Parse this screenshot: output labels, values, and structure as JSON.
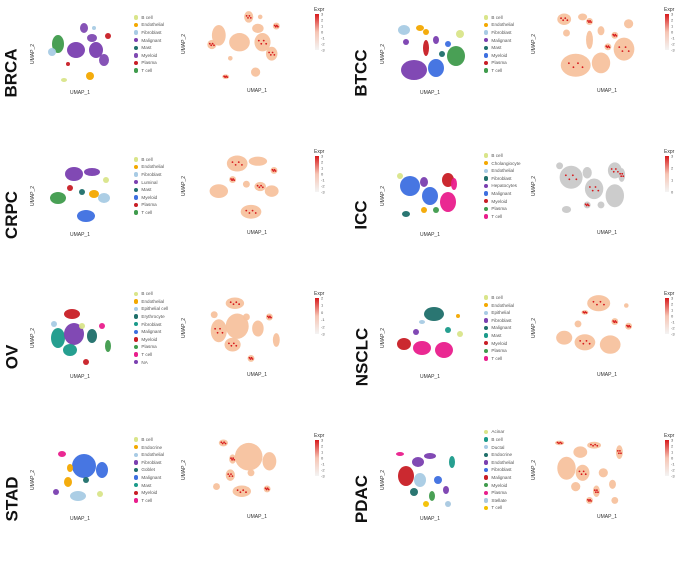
{
  "chart_data": [
    {
      "type": "scatter",
      "name": "BRCA",
      "xlabel": "UMAP_1",
      "ylabel": "UMAP_2",
      "legend": "right",
      "cell_types": [
        "B cell",
        "Endothelial",
        "Fibroblast",
        "Malignant",
        "Mast",
        "Myeloid",
        "Plasma",
        "T cell"
      ],
      "colors": [
        "#d9e58a",
        "#f3a800",
        "#a8cbe4",
        "#7a3fb0",
        "#1f6f6a",
        "#7f4ab2",
        "#c81d25",
        "#3f9b4c"
      ],
      "expr_title": "Expr",
      "expr_ticks": [
        "3",
        "2",
        "1",
        "0",
        "-1",
        "-2",
        "-3"
      ],
      "expr_range": [
        -3,
        3
      ],
      "expr_mode": "normal"
    },
    {
      "type": "scatter",
      "name": "BTCC",
      "xlabel": "UMAP_1",
      "ylabel": "UMAP_2",
      "legend": "right",
      "cell_types": [
        "B cell",
        "Endothelial",
        "Fibroblast",
        "Malignant",
        "Mast",
        "Myeloid",
        "Plasma",
        "T cell"
      ],
      "colors": [
        "#d9e58a",
        "#f3a800",
        "#a8cbe4",
        "#7a3fb0",
        "#1f6f6a",
        "#3d6fe0",
        "#c81d25",
        "#3f9b4c"
      ],
      "expr_title": "Expr",
      "expr_ticks": [
        "3",
        "2",
        "1",
        "0",
        "-1",
        "-2",
        "-3"
      ],
      "expr_range": [
        -3,
        3
      ],
      "expr_mode": "normal"
    },
    {
      "type": "scatter",
      "name": "CRPC",
      "xlabel": "UMAP_1",
      "ylabel": "UMAP_2",
      "legend": "right",
      "cell_types": [
        "B cell",
        "Endothelial",
        "Fibroblast",
        "Luminal",
        "Mast",
        "Myeloid",
        "Plasma",
        "T cell"
      ],
      "colors": [
        "#d9e58a",
        "#f3a800",
        "#a8cbe4",
        "#7a3fb0",
        "#1f6f6a",
        "#3d6fe0",
        "#c81d25",
        "#3f9b4c"
      ],
      "expr_title": "Expr",
      "expr_ticks": [
        "3",
        "2",
        "1",
        "0",
        "-1",
        "-2",
        "-3"
      ],
      "expr_range": [
        -3,
        3
      ],
      "expr_mode": "normal"
    },
    {
      "type": "scatter",
      "name": "ICC",
      "xlabel": "UMAP_1",
      "ylabel": "UMAP_2",
      "legend": "right",
      "cell_types": [
        "B cell",
        "Cholangiocyte",
        "Endothelial",
        "Fibroblast",
        "Hepatocytes",
        "Malignant",
        "Myeloid",
        "Plasma",
        "T cell"
      ],
      "colors": [
        "#d9e58a",
        "#f3a800",
        "#a8cbe4",
        "#1f6f6a",
        "#7a3fb0",
        "#3d6fe0",
        "#c81d25",
        "#3f9b4c",
        "#e91e8c"
      ],
      "expr_title": "Expr",
      "expr_ticks": [
        "3",
        "2",
        "1",
        "0"
      ],
      "expr_range": [
        0,
        3
      ],
      "expr_mode": "grey"
    },
    {
      "type": "scatter",
      "name": "OV",
      "xlabel": "UMAP_1",
      "ylabel": "UMAP_2",
      "legend": "right",
      "cell_types": [
        "B cell",
        "Endothelial",
        "Epithelial cell",
        "Erythrocyte",
        "Fibroblast",
        "Malignant",
        "Myeloid",
        "Plasma",
        "T cell",
        "NA"
      ],
      "colors": [
        "#d9e58a",
        "#f3a800",
        "#a8cbe4",
        "#1f6f6a",
        "#1a9a8a",
        "#3d6fe0",
        "#c81d25",
        "#3f9b4c",
        "#e91e8c",
        "#7a3fb0"
      ],
      "expr_title": "Expr",
      "expr_ticks": [
        "2",
        "1",
        "0",
        "-1",
        "-2",
        "-3"
      ],
      "expr_range": [
        -3,
        2
      ],
      "expr_mode": "normal"
    },
    {
      "type": "scatter",
      "name": "NSCLC",
      "xlabel": "UMAP_1",
      "ylabel": "UMAP_2",
      "legend": "right",
      "cell_types": [
        "B cell",
        "Endothelial",
        "Epithelial",
        "Fibroblast",
        "Malignant",
        "Mast",
        "Myeloid",
        "Plasma",
        "T cell"
      ],
      "colors": [
        "#d9e58a",
        "#f3a800",
        "#a8cbe4",
        "#7a3fb0",
        "#1f6f6a",
        "#1a9a8a",
        "#c81d25",
        "#3f9b4c",
        "#e91e8c"
      ],
      "expr_title": "Expr",
      "expr_ticks": [
        "3",
        "2",
        "1",
        "0",
        "-1",
        "-2",
        "-3"
      ],
      "expr_range": [
        -3,
        3
      ],
      "expr_mode": "normal"
    },
    {
      "type": "scatter",
      "name": "STAD",
      "xlabel": "UMAP_1",
      "ylabel": "UMAP_2",
      "legend": "right",
      "cell_types": [
        "B cell",
        "Endocrine",
        "Endothelial",
        "Fibroblast",
        "Goblet",
        "Malignant",
        "Mast",
        "Myeloid",
        "T cell"
      ],
      "colors": [
        "#d9e58a",
        "#f3a800",
        "#a8cbe4",
        "#7a3fb0",
        "#1f6f6a",
        "#3d6fe0",
        "#1a9a8a",
        "#c81d25",
        "#e91e8c"
      ],
      "expr_title": "Expr",
      "expr_ticks": [
        "3",
        "2",
        "1",
        "0",
        "-1",
        "-2",
        "-3"
      ],
      "expr_range": [
        -3,
        3
      ],
      "expr_mode": "normal"
    },
    {
      "type": "scatter",
      "name": "PDAC",
      "xlabel": "UMAP_1",
      "ylabel": "UMAP_2",
      "legend": "right",
      "cell_types": [
        "Acinar",
        "B cell",
        "Ductal",
        "Endocrine",
        "Endothelial",
        "Fibroblast",
        "Malignant",
        "Myeloid",
        "Plasma",
        "Stellate",
        "T cell"
      ],
      "colors": [
        "#d9e58a",
        "#1a9a8a",
        "#a8cbe4",
        "#1f6f6a",
        "#7a3fb0",
        "#3d6fe0",
        "#c81d25",
        "#3f9b4c",
        "#e91e8c",
        "#a8c8e0",
        "#f3c000"
      ],
      "expr_title": "Expr",
      "expr_ticks": [
        "3",
        "2",
        "1",
        "0",
        "-1",
        "-2",
        "-3"
      ],
      "expr_range": [
        -3,
        3
      ],
      "expr_mode": "normal"
    }
  ]
}
